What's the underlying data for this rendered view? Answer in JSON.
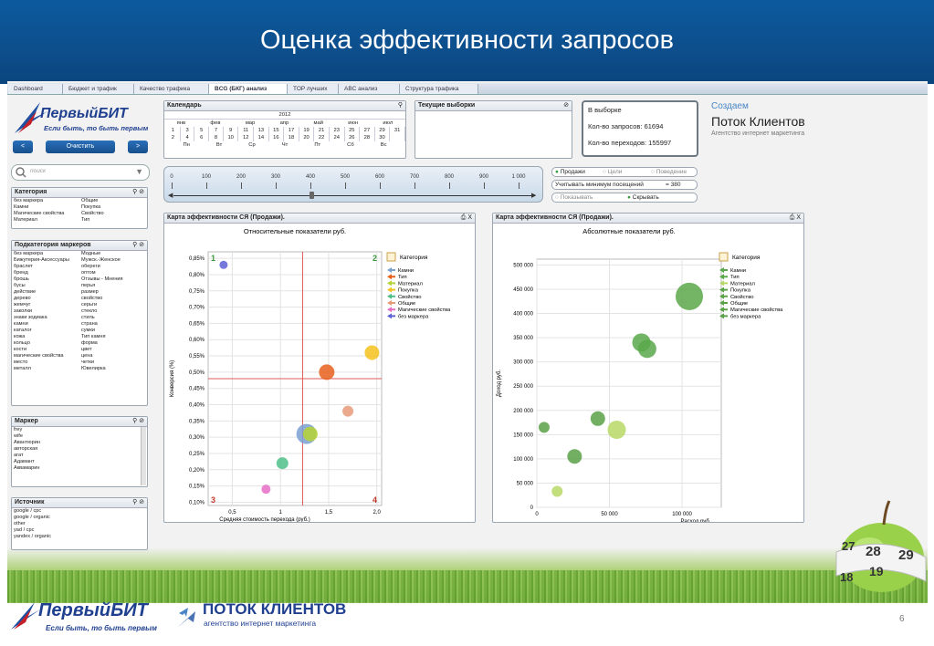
{
  "slide": {
    "title": "Оценка эффективности запросов",
    "page_number": "6"
  },
  "tabs": [
    "Dashboard",
    "Бюджет и трафик",
    "Качество трафика",
    "BCG (БКГ) анализ",
    "TOP лучших",
    "ABC анализ",
    "Структура трафика"
  ],
  "logo": {
    "brand": "ПервыйБИТ",
    "slogan": "Если быть, то быть первым",
    "clear_label": "Очистить",
    "prev": "<",
    "next": ">"
  },
  "search": {
    "placeholder": "поиск"
  },
  "calendar": {
    "title": "Календарь",
    "year": "2012",
    "months": [
      "янв",
      "фев",
      "мар",
      "апр",
      "май",
      "июн",
      "июл"
    ],
    "rows": [
      [
        "1",
        "3",
        "5",
        "7",
        "9",
        "11",
        "13",
        "15",
        "17",
        "19",
        "21",
        "23",
        "25",
        "27",
        "29",
        "31"
      ],
      [
        "2",
        "4",
        "6",
        "8",
        "10",
        "12",
        "14",
        "16",
        "18",
        "20",
        "22",
        "24",
        "26",
        "28",
        "30",
        ""
      ]
    ],
    "weekdays": [
      "Пн",
      "Вт",
      "Ср",
      "Чт",
      "Пт",
      "Сб",
      "Вс"
    ]
  },
  "current": {
    "title": "Текущие выборки"
  },
  "sample": {
    "title": "В выборке",
    "requests": "Кол-во запросов: 61694",
    "visits": "Кол-во переходов: 155997"
  },
  "promo": {
    "line1": "Создаем",
    "line2": "Поток Клиентов",
    "line3": "Агентство интернет маркетинга"
  },
  "slider": {
    "ticks": [
      "0",
      "100",
      "200",
      "300",
      "400",
      "500",
      "600",
      "700",
      "800",
      "900",
      "1 000"
    ]
  },
  "modes": {
    "opt1": "Продажи",
    "opt2": "Цели",
    "opt3": "Поведение",
    "min_label": "Учитывать минимум посещений",
    "min_value": "= 380",
    "show": "Показывать",
    "hide": "Скрывать"
  },
  "filters": {
    "category": {
      "title": "Категория",
      "rows": [
        [
          "без маркера",
          "Общие"
        ],
        [
          "Камни",
          "Покупка"
        ],
        [
          "Магические свойства",
          "Свойство"
        ],
        [
          "Материал",
          "Тип"
        ]
      ]
    },
    "subcategory": {
      "title": "Подкатегория маркеров",
      "rows": [
        [
          "без маркера",
          "Модные"
        ],
        [
          "Бижутерия-Аксессуары",
          "Мужск.-Женское"
        ],
        [
          "браслет",
          "обереги"
        ],
        [
          "бренд",
          "оптом"
        ],
        [
          "брошь",
          "Отзывы - Мнения"
        ],
        [
          "бусы",
          "перья"
        ],
        [
          "действие",
          "размер"
        ],
        [
          "дерево",
          "свойство"
        ],
        [
          "жемчуг",
          "серьги"
        ],
        [
          "заколки",
          "стекло"
        ],
        [
          "знаки зодиака",
          "стиль"
        ],
        [
          "камни",
          "страна"
        ],
        [
          "каталог",
          "сумки"
        ],
        [
          "кожа",
          "Тип камня"
        ],
        [
          "кольцо",
          "форма"
        ],
        [
          "кости",
          "цвет"
        ],
        [
          "магические свойства",
          "цена"
        ],
        [
          "место",
          "четки"
        ],
        [
          "металл",
          "Ювелирка"
        ]
      ]
    },
    "marker": {
      "title": "Маркер",
      "items": [
        "frey",
        "wife",
        "Авантюрин",
        "авторская",
        "агат",
        "Адамант",
        "Аквамарин"
      ]
    },
    "source": {
      "title": "Источник",
      "items": [
        "google / cpc",
        "google / organic",
        "other",
        "yad / cpc",
        "yandex / organic"
      ]
    }
  },
  "chart_data": [
    {
      "type": "scatter",
      "panel_title": "Карта эффективности СЯ (Продажи).",
      "title": "Относительные показатели руб.",
      "xlabel": "Средняя стоимость перехода (руб.)",
      "ylabel": "Конверсия (%)",
      "xlim": [
        0.25,
        2.05
      ],
      "ylim": [
        0.09,
        0.87
      ],
      "xticks": [
        "0,5",
        "1",
        "1,5",
        "2,0"
      ],
      "xtick_values": [
        0.5,
        1.0,
        1.5,
        2.0
      ],
      "yticks": [
        "0,10%",
        "0,15%",
        "0,20%",
        "0,25%",
        "0,30%",
        "0,35%",
        "0,40%",
        "0,45%",
        "0,50%",
        "0,55%",
        "0,60%",
        "0,65%",
        "0,70%",
        "0,75%",
        "0,80%",
        "0,85%"
      ],
      "ytick_values": [
        0.1,
        0.15,
        0.2,
        0.25,
        0.3,
        0.35,
        0.4,
        0.45,
        0.5,
        0.55,
        0.6,
        0.65,
        0.7,
        0.75,
        0.8,
        0.85
      ],
      "quadrants": [
        "1",
        "2",
        "3",
        "4"
      ],
      "ref_lines": {
        "x": 1.23,
        "y": 0.48
      },
      "legend_title": "Категория",
      "series": [
        {
          "name": "Камни",
          "color": "#7a9fd1",
          "points": [
            {
              "x": 1.27,
              "y": 0.31,
              "r": 11
            }
          ]
        },
        {
          "name": "Тип",
          "color": "#e8601c",
          "points": [
            {
              "x": 1.48,
              "y": 0.5,
              "r": 8.5
            }
          ]
        },
        {
          "name": "Материал",
          "color": "#b6d334",
          "points": [
            {
              "x": 1.31,
              "y": 0.31,
              "r": 8
            }
          ]
        },
        {
          "name": "Покупка",
          "color": "#f4c21e",
          "points": [
            {
              "x": 1.95,
              "y": 0.56,
              "r": 8
            }
          ]
        },
        {
          "name": "Свойство",
          "color": "#4fbf88",
          "points": [
            {
              "x": 1.02,
              "y": 0.22,
              "r": 6.5
            }
          ]
        },
        {
          "name": "Общие",
          "color": "#e89b79",
          "points": [
            {
              "x": 1.7,
              "y": 0.38,
              "r": 6
            }
          ]
        },
        {
          "name": "Магические свойства",
          "color": "#e66fc6",
          "points": [
            {
              "x": 0.85,
              "y": 0.14,
              "r": 5
            }
          ]
        },
        {
          "name": "без маркера",
          "color": "#5d62d6",
          "points": [
            {
              "x": 0.41,
              "y": 0.83,
              "r": 4.5
            }
          ]
        }
      ]
    },
    {
      "type": "scatter",
      "panel_title": "Карта эффективности СЯ (Продажи).",
      "title": "Абсолютные показатели руб.",
      "xlabel": "Расход руб.",
      "ylabel": "Доход руб.",
      "xlim": [
        0,
        127000
      ],
      "ylim": [
        0,
        512000
      ],
      "xticks": [
        "0",
        "50 000",
        "100 000"
      ],
      "xtick_values": [
        0,
        50000,
        100000
      ],
      "yticks": [
        "0",
        "50 000",
        "100 000",
        "150 000",
        "200 000",
        "250 000",
        "300 000",
        "350 000",
        "400 000",
        "450 000",
        "500 000"
      ],
      "ytick_values": [
        0,
        50000,
        100000,
        150000,
        200000,
        250000,
        300000,
        350000,
        400000,
        450000,
        500000
      ],
      "legend_title": "Категория",
      "series": [
        {
          "name": "Камни",
          "color": "#59a84b",
          "points": [
            {
              "x": 72000,
              "y": 340000,
              "r": 10
            },
            {
              "x": 76000,
              "y": 327000,
              "r": 10
            }
          ]
        },
        {
          "name": "Тип",
          "color": "#5aa84a",
          "points": [
            {
              "x": 105000,
              "y": 435000,
              "r": 15
            }
          ]
        },
        {
          "name": "Материал",
          "color": "#b8d866",
          "points": [
            {
              "x": 55000,
              "y": 160000,
              "r": 10
            },
            {
              "x": 14000,
              "y": 33000,
              "r": 6
            }
          ]
        },
        {
          "name": "Покупка",
          "color": "#5ba148",
          "points": [
            {
              "x": 26000,
              "y": 105000,
              "r": 8
            }
          ]
        },
        {
          "name": "Свойство",
          "color": "#5ba148",
          "points": [
            {
              "x": 42000,
              "y": 183000,
              "r": 8
            }
          ]
        },
        {
          "name": "Общие",
          "color": "#5ba148",
          "points": [
            {
              "x": 5000,
              "y": 165000,
              "r": 6
            }
          ]
        },
        {
          "name": "Магические свойства",
          "color": "#5ba148",
          "points": []
        },
        {
          "name": "без маркера",
          "color": "#5ba148",
          "points": []
        }
      ]
    }
  ],
  "apple": {
    "numbers": [
      "27",
      "28",
      "29",
      "18",
      "19"
    ]
  },
  "footer": {
    "brand1": "ПервыйБИТ",
    "slogan1": "Если быть, то быть первым",
    "brand2": "ПОТОК КЛИЕНТОВ",
    "slogan2": "агентство интернет маркетинга"
  }
}
